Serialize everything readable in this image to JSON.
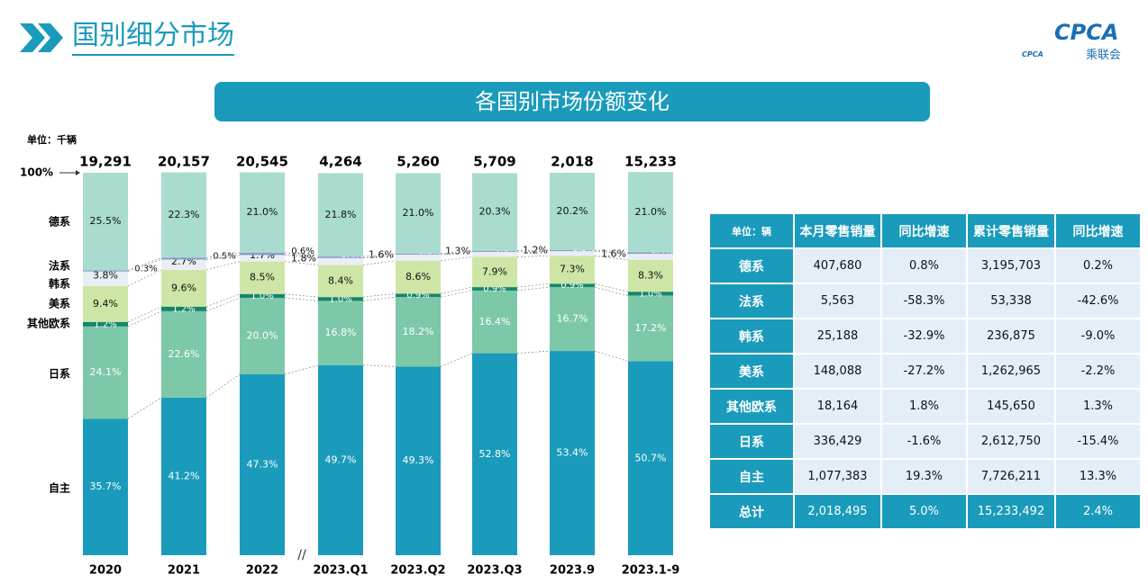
{
  "header": {
    "title": "国别细分市场",
    "logo": "CPCA",
    "logo_sub": "乘联会",
    "logo_mark": "CPCA"
  },
  "chart_data": {
    "type": "stacked_bar",
    "title": "各国别市场份额变化",
    "unit": "单位：千辆",
    "categories": [
      "2020",
      "2021",
      "2022",
      "2023.Q1",
      "2023.Q2",
      "2023.Q3",
      "2023.9",
      "2023.1-9"
    ],
    "totals": {
      "values": [
        19291,
        20157,
        20545,
        4264,
        5260,
        5709,
        2018,
        15233
      ],
      "value_labels": [
        "19,291",
        "20,157",
        "20,545",
        "4,264",
        "5,260",
        "5,709",
        "2,018",
        "15,233"
      ]
    },
    "ylim": [
      0,
      100
    ],
    "yticks": [
      {
        "value": 100,
        "label": "100%"
      }
    ],
    "series": [
      {
        "name": "自主",
        "color": "#1a9bbb",
        "values": [
          35.7,
          41.2,
          47.3,
          49.7,
          49.3,
          52.8,
          53.4,
          50.7
        ],
        "value_labels": [
          "35.7%",
          "41.2%",
          "47.3%",
          "49.7%",
          "49.3%",
          "52.8%",
          "53.4%",
          "50.7%"
        ]
      },
      {
        "name": "日系",
        "color": "#7cc8a8",
        "values": [
          24.1,
          22.6,
          20,
          16.8,
          18.2,
          16.4,
          16.7,
          17.2
        ],
        "value_labels": [
          "24.1%",
          "22.6%",
          "20.0%",
          "16.8%",
          "18.2%",
          "16.4%",
          "16.7%",
          "17.2%"
        ]
      },
      {
        "name": "其他欧系",
        "color": "#15866c",
        "values": [
          1.2,
          1.2,
          1,
          1,
          0.9,
          0.9,
          0.9,
          1
        ],
        "value_labels": [
          "1.2%",
          "1.2%",
          "1.0%",
          "1.0%",
          "0.9%",
          "0.9%",
          "0.9%",
          "1.0%"
        ]
      },
      {
        "name": "美系",
        "color": "#cde6a6",
        "values": [
          9.4,
          9.6,
          8.5,
          8.4,
          8.6,
          7.9,
          7.3,
          8.3
        ],
        "value_labels": [
          "9.4%",
          "9.6%",
          "8.5%",
          "8.4%",
          "8.6%",
          "7.9%",
          "7.3%",
          "8.3%"
        ]
      },
      {
        "name": "韩系",
        "color": "#e9eef6",
        "values": [
          3.8,
          2.7,
          1.7,
          1.8,
          1.6,
          1.3,
          1.2,
          1.6
        ],
        "value_labels": [
          "3.8%",
          "2.7%",
          "1.7%",
          "1.8%",
          "1.6%",
          "1.3%",
          "1.2%",
          "1.6%"
        ]
      },
      {
        "name": "法系",
        "color": "#8a9bc9",
        "values": [
          0.3,
          0.5,
          0.6,
          0.4,
          0.3,
          0.3,
          0.3,
          0.4
        ],
        "value_labels": [
          "0.3%",
          "0.5%",
          "0.6%",
          "0.4%",
          "0.3%",
          "0.3%",
          "0.3%",
          "0.4%"
        ]
      },
      {
        "name": "德系",
        "color": "#a9dccf",
        "values": [
          25.5,
          22.3,
          21,
          21.8,
          21,
          20.3,
          20.2,
          21
        ],
        "value_labels": [
          "25.5%",
          "22.3%",
          "21.0%",
          "21.8%",
          "21.0%",
          "20.3%",
          "20.2%",
          "21.0%"
        ]
      }
    ]
  },
  "table": {
    "header": [
      "单位：辆",
      "本月零售销量",
      "同比增速",
      "累计零售销量",
      "同比增速"
    ],
    "rows": [
      [
        "德系",
        "407,680",
        "0.8%",
        "3,195,703",
        "0.2%"
      ],
      [
        "法系",
        "5,563",
        "-58.3%",
        "53,338",
        "-42.6%"
      ],
      [
        "韩系",
        "25,188",
        "-32.9%",
        "236,875",
        "-9.0%"
      ],
      [
        "美系",
        "148,088",
        "-27.2%",
        "1,262,965",
        "-2.2%"
      ],
      [
        "其他欧系",
        "18,164",
        "1.8%",
        "145,650",
        "1.3%"
      ],
      [
        "日系",
        "336,429",
        "-1.6%",
        "2,612,750",
        "-15.4%"
      ],
      [
        "自主",
        "1,077,383",
        "19.3%",
        "7,726,211",
        "13.3%"
      ],
      [
        "总计",
        "2,018,495",
        "5.0%",
        "15,233,492",
        "2.4%"
      ]
    ]
  }
}
